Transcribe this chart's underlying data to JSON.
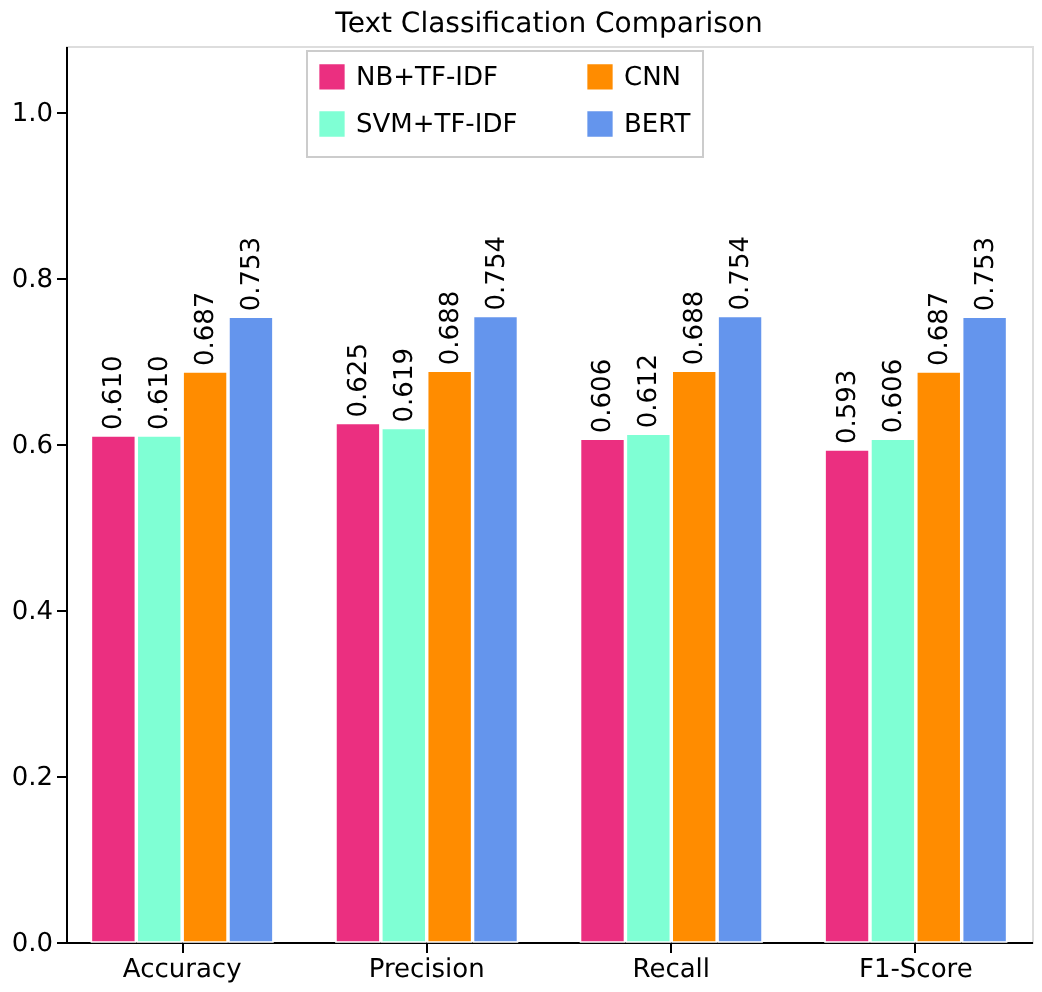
{
  "chart_data": {
    "type": "bar",
    "title": "Text Classification Comparison",
    "categories": [
      "Accuracy",
      "Precision",
      "Recall",
      "F1-Score"
    ],
    "series": [
      {
        "name": "NB+TF-IDF",
        "color": "#eb2f80",
        "values": [
          0.61,
          0.625,
          0.606,
          0.593
        ],
        "value_labels": [
          "0.610",
          "0.625",
          "0.606",
          "0.593"
        ]
      },
      {
        "name": "SVM+TF-IDF",
        "color": "#7fffd4",
        "values": [
          0.61,
          0.619,
          0.612,
          0.606
        ],
        "value_labels": [
          "0.610",
          "0.619",
          "0.612",
          "0.606"
        ]
      },
      {
        "name": "CNN",
        "color": "#ff8c00",
        "values": [
          0.687,
          0.688,
          0.688,
          0.687
        ],
        "value_labels": [
          "0.687",
          "0.688",
          "0.688",
          "0.687"
        ]
      },
      {
        "name": "BERT",
        "color": "#6495ed",
        "values": [
          0.753,
          0.754,
          0.754,
          0.753
        ],
        "value_labels": [
          "0.753",
          "0.754",
          "0.754",
          "0.753"
        ]
      }
    ],
    "ylim": [
      0,
      1.08
    ],
    "yticks": [
      {
        "value": 0,
        "label": "0.0"
      },
      0.2,
      0.4,
      0.6,
      0.8,
      {
        "value": 1,
        "label": "1.0"
      }
    ],
    "legend": "top",
    "grid": false
  }
}
